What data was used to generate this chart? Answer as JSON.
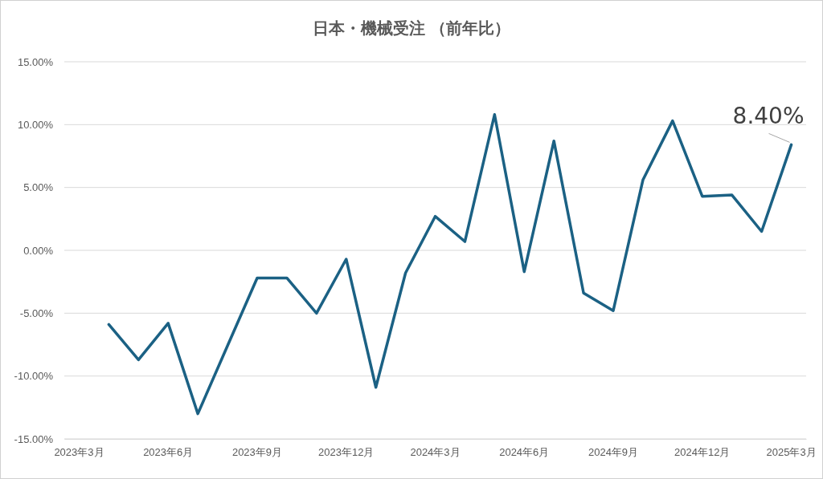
{
  "chart_data": {
    "type": "line",
    "title": "日本・機械受注 （前年比）",
    "categories": [
      "2023年3月",
      null,
      null,
      "2023年6月",
      null,
      null,
      "2023年9月",
      null,
      null,
      "2023年12月",
      null,
      null,
      "2024年3月",
      null,
      null,
      "2024年6月",
      null,
      null,
      "2024年9月",
      null,
      null,
      "2024年12月",
      null,
      null,
      "2025年3月"
    ],
    "series": [
      {
        "color": "#1b6184",
        "values": [
          null,
          -5.9,
          -8.7,
          -5.8,
          -13.0,
          -7.6,
          -2.2,
          -2.2,
          -5.0,
          -0.7,
          -10.9,
          -1.8,
          2.7,
          0.7,
          10.8,
          -1.7,
          8.7,
          -3.4,
          -4.8,
          5.6,
          10.3,
          4.3,
          4.4,
          1.5,
          8.4
        ],
        "value_labels": [
          null,
          null,
          null,
          null,
          null,
          null,
          null,
          null,
          null,
          null,
          null,
          null,
          null,
          null,
          null,
          null,
          null,
          null,
          null,
          null,
          null,
          null,
          null,
          null,
          "8.40%"
        ]
      }
    ],
    "ylim": [
      -15,
      15
    ],
    "yticks": [
      {
        "value": -15,
        "label": "-15.00%"
      },
      {
        "value": -10,
        "label": "-10.00%"
      },
      {
        "value": -5,
        "label": "-5.00%"
      },
      {
        "value": 0,
        "label": "0.00%"
      },
      {
        "value": 5,
        "label": "5.00%"
      },
      {
        "value": 10,
        "label": "10.00%"
      },
      {
        "value": 15,
        "label": "15.00%"
      }
    ],
    "grid": "y",
    "marker": "none",
    "line_style": "solid"
  }
}
